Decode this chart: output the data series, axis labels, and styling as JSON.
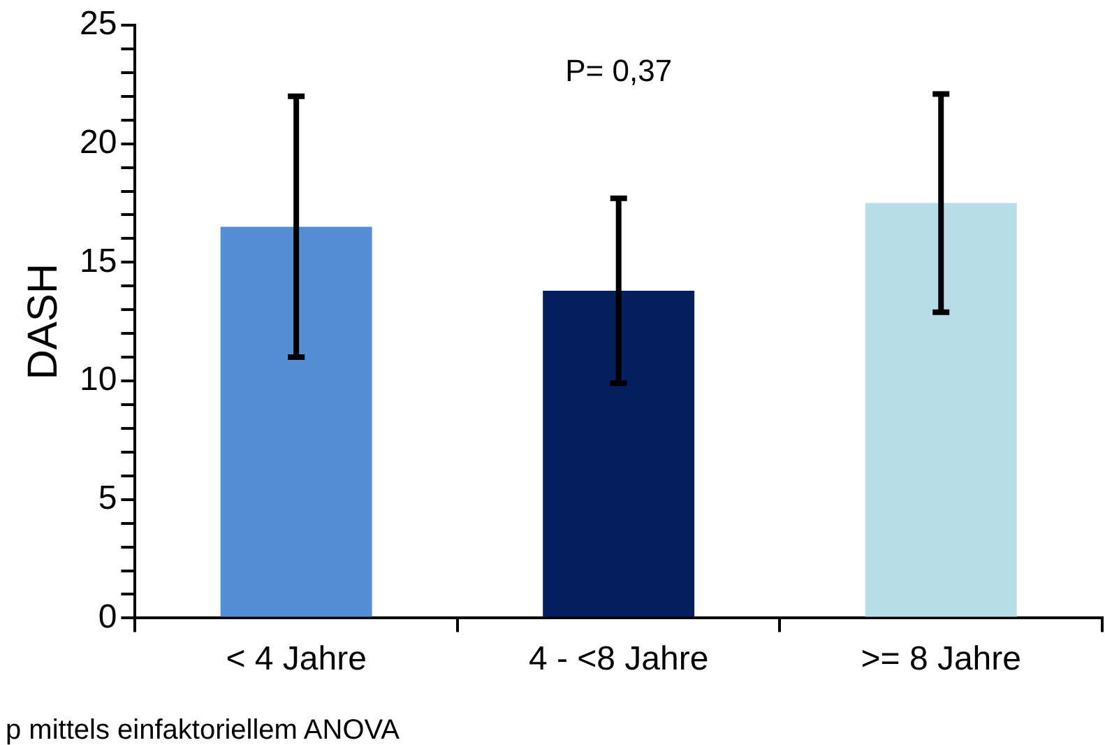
{
  "chart_data": {
    "type": "bar",
    "ylabel": "DASH",
    "categories": [
      "< 4 Jahre",
      "4 - <8 Jahre",
      ">= 8 Jahre"
    ],
    "values": [
      16.5,
      13.8,
      17.5
    ],
    "colors": [
      "#558ed5",
      "#031f5e",
      "#b7dde8"
    ],
    "errors": [
      5.5,
      3.9,
      4.6
    ],
    "ylim": [
      0,
      25
    ],
    "yticks": [
      0,
      {
        "value": 1,
        "label": null
      },
      {
        "value": 2,
        "label": null
      },
      {
        "value": 3,
        "label": null
      },
      {
        "value": 4,
        "label": null
      },
      5,
      {
        "value": 6,
        "label": null
      },
      {
        "value": 7,
        "label": null
      },
      {
        "value": 8,
        "label": null
      },
      {
        "value": 9,
        "label": null
      },
      10,
      {
        "value": 11,
        "label": null
      },
      {
        "value": 12,
        "label": null
      },
      {
        "value": 13,
        "label": null
      },
      {
        "value": 14,
        "label": null
      },
      15,
      {
        "value": 16,
        "label": null
      },
      {
        "value": 17,
        "label": null
      },
      {
        "value": 18,
        "label": null
      },
      {
        "value": 19,
        "label": null
      },
      20,
      {
        "value": 21,
        "label": null
      },
      {
        "value": 22,
        "label": null
      },
      {
        "value": 23,
        "label": null
      },
      {
        "value": 24,
        "label": null
      },
      25
    ],
    "grid": false,
    "legend": false,
    "annotations": [
      "P= 0,37",
      "p mittels einfaktoriellem ANOVA"
    ]
  }
}
